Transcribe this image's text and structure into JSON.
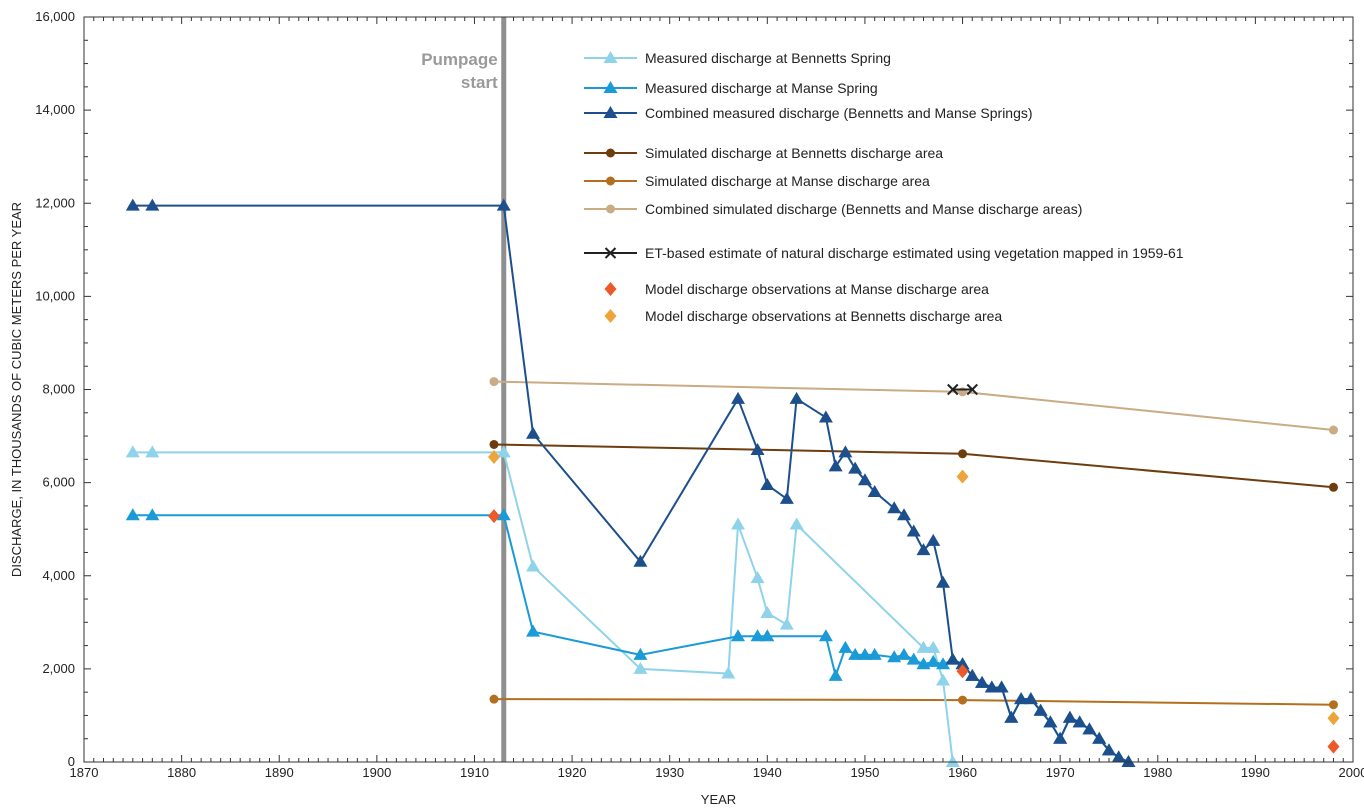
{
  "chart_data": {
    "type": "line",
    "xlabel": "YEAR",
    "ylabel": "DISCHARGE, IN THOUSANDS OF CUBIC METERS PER YEAR",
    "xlim": [
      1870,
      2000
    ],
    "ylim": [
      0,
      16000
    ],
    "x_ticks": [
      "1870",
      "1880",
      "1890",
      "1900",
      "1910",
      "1920",
      "1930",
      "1940",
      "1950",
      "1960",
      "1970",
      "1980",
      "1990",
      "2000"
    ],
    "y_ticks": [
      "0",
      "2,000",
      "4,000",
      "6,000",
      "8,000",
      "10,000",
      "12,000",
      "14,000",
      "16,000"
    ],
    "annotation": {
      "line1": "Pumpage",
      "line2": "start",
      "x": 1913
    },
    "legend_position": "top-right",
    "series": [
      {
        "name": "Measured discharge at Bennetts Spring",
        "marker": "triangle",
        "color": "#8fd3ea",
        "points": [
          [
            1875,
            6650
          ],
          [
            1877,
            6650
          ],
          [
            1913,
            6650
          ],
          [
            1916,
            4200
          ],
          [
            1927,
            2000
          ],
          [
            1936,
            1900
          ],
          [
            1937,
            5100
          ],
          [
            1939,
            3950
          ],
          [
            1940,
            3200
          ],
          [
            1942,
            2950
          ],
          [
            1943,
            5100
          ],
          [
            1956,
            2450
          ],
          [
            1957,
            2450
          ],
          [
            1958,
            1750
          ],
          [
            1959,
            0
          ]
        ]
      },
      {
        "name": "Measured discharge at Manse Spring",
        "marker": "triangle",
        "color": "#1a9ad6",
        "points": [
          [
            1875,
            5300
          ],
          [
            1877,
            5300
          ],
          [
            1913,
            5300
          ],
          [
            1916,
            2800
          ],
          [
            1927,
            2300
          ],
          [
            1937,
            2700
          ],
          [
            1939,
            2700
          ],
          [
            1940,
            2700
          ],
          [
            1946,
            2700
          ],
          [
            1947,
            1850
          ],
          [
            1948,
            2450
          ],
          [
            1949,
            2300
          ],
          [
            1950,
            2300
          ],
          [
            1951,
            2300
          ],
          [
            1953,
            2250
          ],
          [
            1954,
            2300
          ],
          [
            1955,
            2200
          ],
          [
            1956,
            2100
          ],
          [
            1957,
            2150
          ],
          [
            1958,
            2100
          ],
          [
            1959,
            2200
          ],
          [
            1960,
            2100
          ],
          [
            1961,
            1850
          ],
          [
            1962,
            1700
          ],
          [
            1963,
            1600
          ],
          [
            1964,
            1600
          ],
          [
            1965,
            950
          ],
          [
            1966,
            1350
          ],
          [
            1967,
            1350
          ],
          [
            1968,
            1100
          ],
          [
            1969,
            850
          ],
          [
            1970,
            500
          ],
          [
            1971,
            950
          ],
          [
            1972,
            850
          ],
          [
            1973,
            700
          ],
          [
            1974,
            500
          ],
          [
            1975,
            250
          ],
          [
            1976,
            100
          ],
          [
            1977,
            0
          ]
        ]
      },
      {
        "name": "Combined measured discharge (Bennetts and Manse Springs)",
        "marker": "triangle",
        "color": "#1c4f8c",
        "points": [
          [
            1875,
            11950
          ],
          [
            1877,
            11950
          ],
          [
            1913,
            11950
          ],
          [
            1916,
            7050
          ],
          [
            1927,
            4300
          ],
          [
            1937,
            7800
          ],
          [
            1939,
            6700
          ],
          [
            1940,
            5950
          ],
          [
            1942,
            5650
          ],
          [
            1943,
            7800
          ],
          [
            1946,
            7400
          ],
          [
            1947,
            6350
          ],
          [
            1948,
            6650
          ],
          [
            1949,
            6300
          ],
          [
            1950,
            6050
          ],
          [
            1951,
            5800
          ],
          [
            1953,
            5450
          ],
          [
            1954,
            5300
          ],
          [
            1955,
            4950
          ],
          [
            1956,
            4550
          ],
          [
            1957,
            4750
          ],
          [
            1958,
            3850
          ],
          [
            1959,
            2200
          ],
          [
            1960,
            2100
          ],
          [
            1961,
            1850
          ],
          [
            1962,
            1700
          ],
          [
            1963,
            1600
          ],
          [
            1964,
            1600
          ],
          [
            1965,
            950
          ],
          [
            1966,
            1350
          ],
          [
            1967,
            1350
          ],
          [
            1968,
            1100
          ],
          [
            1969,
            850
          ],
          [
            1970,
            500
          ],
          [
            1971,
            950
          ],
          [
            1972,
            850
          ],
          [
            1973,
            700
          ],
          [
            1974,
            500
          ],
          [
            1975,
            250
          ],
          [
            1976,
            100
          ],
          [
            1977,
            0
          ]
        ]
      },
      {
        "name": "Simulated discharge at Bennetts discharge area",
        "marker": "circle",
        "color": "#6e3d0e",
        "points": [
          [
            1912,
            6820
          ],
          [
            1960,
            6620
          ],
          [
            1998,
            5900
          ]
        ]
      },
      {
        "name": "Simulated discharge at Manse discharge area",
        "marker": "circle",
        "color": "#b46f1e",
        "points": [
          [
            1912,
            1350
          ],
          [
            1960,
            1330
          ],
          [
            1998,
            1230
          ]
        ]
      },
      {
        "name": "Combined simulated discharge (Bennetts and Manse discharge areas)",
        "marker": "circle",
        "color": "#c9ab84",
        "points": [
          [
            1912,
            8170
          ],
          [
            1960,
            7950
          ],
          [
            1998,
            7130
          ]
        ]
      },
      {
        "name": "ET-based estimate of natural discharge estimated using vegetation mapped in 1959-61",
        "marker": "x",
        "color": "#222222",
        "points": [
          [
            1959,
            8000
          ],
          [
            1961,
            8000
          ]
        ]
      },
      {
        "name": "Model discharge observations at Manse discharge area",
        "marker": "diamond",
        "color": "#ec5a2a",
        "line": false,
        "points": [
          [
            1912,
            5280
          ],
          [
            1960,
            1950
          ],
          [
            1998,
            330
          ]
        ]
      },
      {
        "name": "Model discharge observations at Bennetts discharge area",
        "marker": "diamond",
        "color": "#eda43a",
        "line": false,
        "points": [
          [
            1912,
            6550
          ],
          [
            1960,
            6130
          ],
          [
            1998,
            940
          ]
        ]
      }
    ]
  }
}
